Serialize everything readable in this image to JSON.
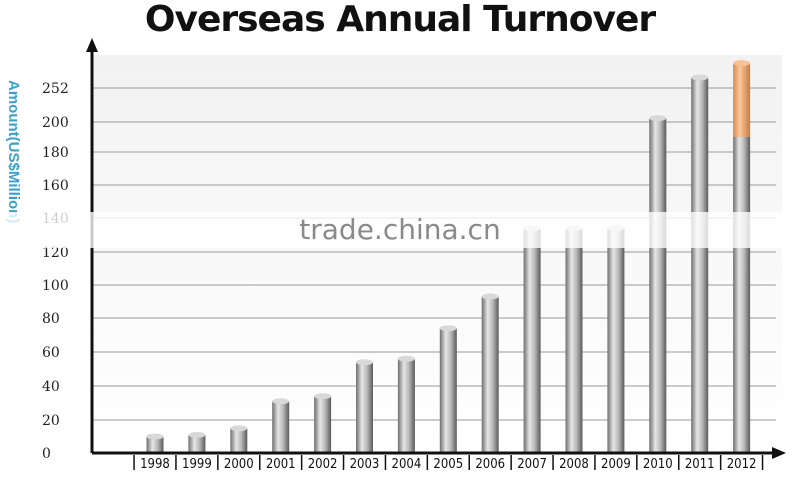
{
  "chart_data": {
    "type": "bar",
    "title": "Overseas Annual Turnover",
    "ylabel": "Amount(US$Million)",
    "xlabel": "",
    "categories": [
      "1998",
      "1999",
      "2000",
      "2001",
      "2002",
      "2003",
      "2004",
      "2005",
      "2006",
      "2007",
      "2008",
      "2009",
      "2010",
      "2011",
      "2012"
    ],
    "values": [
      10,
      11,
      15,
      31,
      34,
      54,
      56,
      74,
      93,
      134,
      134,
      134,
      206,
      268,
      290
    ],
    "highlight": {
      "index": 14,
      "split_value": 190,
      "color": "#f0a868"
    },
    "yticks": [
      {
        "value": 0,
        "label": "0"
      },
      {
        "value": 20,
        "label": "20"
      },
      {
        "value": 40,
        "label": "40"
      },
      {
        "value": 60,
        "label": "60"
      },
      {
        "value": 80,
        "label": "80"
      },
      {
        "value": 100,
        "label": "100"
      },
      {
        "value": 120,
        "label": "120"
      },
      {
        "value": 140,
        "label": "140"
      },
      {
        "value": 160,
        "label": "160"
      },
      {
        "value": 180,
        "label": "180"
      },
      {
        "value": 200,
        "label": "200"
      },
      {
        "value": 252,
        "label": "252"
      }
    ],
    "ylim": [
      0,
      300
    ],
    "grid": true,
    "bar_color": "#9a9a9a"
  },
  "watermark": "trade.china.cn"
}
